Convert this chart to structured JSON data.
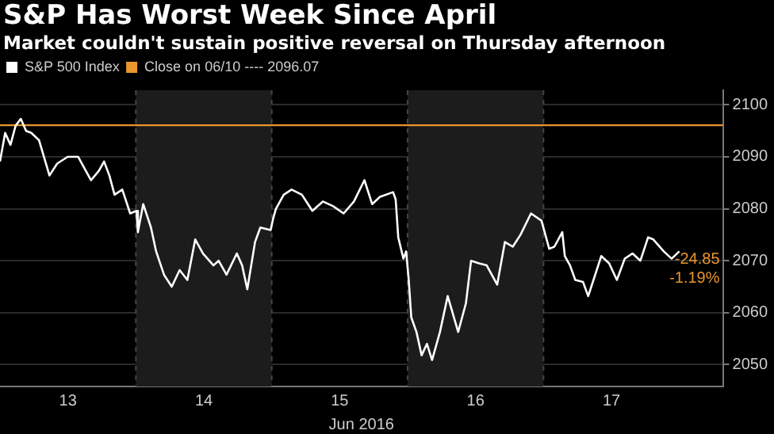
{
  "chart_data": {
    "type": "line",
    "title": "S&P Has Worst Week Since April",
    "subtitle": "Market couldn't sustain positive reversal on Thursday afternoon",
    "xlabel": "Jun 2016",
    "series": [
      {
        "name": "S&P 500 Index",
        "color": "#ffffff",
        "x": [
          12.5,
          12.538,
          12.577,
          12.615,
          12.653,
          12.692,
          12.73,
          12.787,
          12.864,
          12.921,
          12.998,
          13.075,
          13.113,
          13.17,
          13.228,
          13.266,
          13.305,
          13.343,
          13.4,
          13.458,
          13.504,
          13.515,
          13.554,
          13.611,
          13.649,
          13.707,
          13.764,
          13.822,
          13.879,
          13.937,
          13.994,
          14.071,
          14.109,
          14.167,
          14.243,
          14.282,
          14.32,
          14.377,
          14.416,
          14.492,
          14.511,
          14.531,
          14.588,
          14.646,
          14.722,
          14.799,
          14.876,
          14.952,
          15.029,
          15.105,
          15.182,
          15.239,
          15.297,
          15.393,
          15.412,
          15.431,
          15.469,
          15.489,
          15.508,
          15.527,
          15.565,
          15.603,
          15.642,
          15.68,
          15.738,
          15.795,
          15.872,
          15.929,
          15.967,
          16.025,
          16.082,
          16.159,
          16.216,
          16.274,
          16.331,
          16.408,
          16.485,
          16.542,
          16.58,
          16.638,
          16.657,
          16.695,
          16.734,
          16.791,
          16.829,
          16.868,
          16.925,
          16.983,
          17.04,
          17.098,
          17.155,
          17.213,
          17.27,
          17.308,
          17.385,
          17.443,
          17.5
        ],
        "values": [
          2089.1,
          2094.6,
          2092.3,
          2096.0,
          2097.3,
          2095.0,
          2094.6,
          2093.2,
          2086.4,
          2088.7,
          2090.0,
          2090.0,
          2088.2,
          2085.5,
          2087.3,
          2089.1,
          2086.4,
          2082.7,
          2083.7,
          2079.1,
          2079.6,
          2075.5,
          2080.9,
          2076.4,
          2071.8,
          2067.3,
          2065.0,
          2068.2,
          2066.3,
          2074.1,
          2071.4,
          2069.1,
          2070.0,
          2067.3,
          2071.4,
          2069.1,
          2064.5,
          2073.6,
          2076.4,
          2075.9,
          2078.2,
          2080.0,
          2082.7,
          2083.7,
          2082.7,
          2079.6,
          2081.4,
          2080.5,
          2079.1,
          2081.4,
          2085.5,
          2080.9,
          2082.3,
          2083.2,
          2081.8,
          2074.5,
          2070.4,
          2071.8,
          2066.3,
          2059.1,
          2056.3,
          2051.8,
          2054.0,
          2050.9,
          2056.3,
          2063.2,
          2056.3,
          2061.8,
          2070.0,
          2069.5,
          2069.1,
          2065.4,
          2073.6,
          2072.7,
          2075.0,
          2079.1,
          2077.7,
          2072.3,
          2072.7,
          2075.5,
          2070.9,
          2069.1,
          2066.3,
          2065.9,
          2063.2,
          2066.3,
          2070.9,
          2069.5,
          2066.3,
          2070.4,
          2071.4,
          2070.0,
          2074.5,
          2074.1,
          2071.8,
          2070.4,
          2071.8
        ]
      }
    ],
    "xlim": [
      12.5,
      17.82
    ],
    "xticks": [
      13,
      14,
      15,
      16,
      17
    ],
    "ylim": [
      2045.8,
      2102.8
    ],
    "yticks": [
      2050,
      2060,
      2070,
      2080,
      2090,
      2100
    ],
    "ref_lines": [
      {
        "axis": "y",
        "value": 2096.07,
        "label": "Close on 06/10 ---- 2096.07",
        "color": "#e8962e"
      }
    ],
    "bands": [
      {
        "axis": "x",
        "from": 13.5,
        "to": 14.5,
        "color": "#1c1c1c"
      },
      {
        "axis": "x",
        "from": 15.5,
        "to": 16.5,
        "color": "#1c1c1c"
      }
    ],
    "annotations": [
      "-24.85",
      "-1.19%"
    ],
    "grid": "y",
    "legend": "top left",
    "marker": "none",
    "line_style": "solid"
  }
}
